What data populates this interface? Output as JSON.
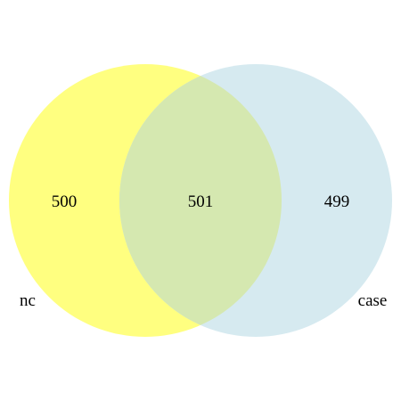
{
  "venn": {
    "sets": [
      {
        "label": "nc",
        "only_count": "500",
        "color": "#ffff80"
      },
      {
        "label": "case",
        "only_count": "499",
        "color": "#d6eaf0"
      }
    ],
    "intersection": {
      "count": "501",
      "color": "#d5e8b0"
    }
  }
}
